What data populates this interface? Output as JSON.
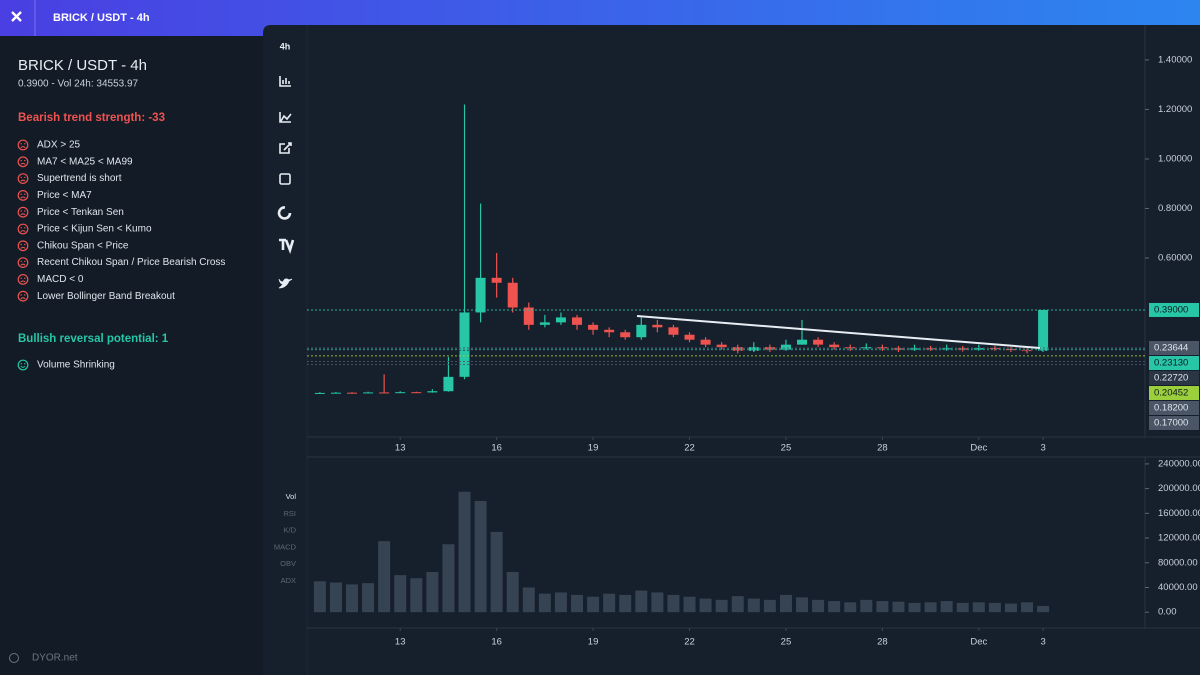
{
  "header": {
    "title": "BRICK / USDT - 4h"
  },
  "sidebar": {
    "title": "BRICK / USDT - 4h",
    "subtitle": "0.3900 - Vol 24h: 34553.97",
    "bearish": {
      "heading": "Bearish trend strength: -33",
      "items": [
        "ADX > 25",
        "MA7 < MA25 < MA99",
        "Supertrend is short",
        "Price < MA7",
        "Price < Tenkan Sen",
        "Price < Kijun Sen < Kumo",
        "Chikou Span < Price",
        "Recent Chikou Span / Price Bearish Cross",
        "MACD < 0",
        "Lower Bollinger Band Breakout"
      ]
    },
    "bullish": {
      "heading": "Bullish reversal potential: 1",
      "items": [
        "Volume Shrinking"
      ]
    },
    "footer": "DYOR.net"
  },
  "toolbar": {
    "interval": "4h"
  },
  "indicators": [
    "Vol",
    "RSI",
    "K/D",
    "MACD",
    "OBV",
    "ADX"
  ],
  "chart_data": [
    {
      "type": "candlestick",
      "x": [
        10.5,
        11,
        11.5,
        12,
        12.5,
        13,
        13.5,
        14,
        14.5,
        15,
        15.5,
        16,
        16.5,
        17,
        17.5,
        18,
        18.5,
        19,
        19.5,
        20,
        20.5,
        21,
        21.5,
        22,
        22.5,
        23,
        23.5,
        24,
        24.5,
        25,
        25.5,
        26,
        26.5,
        27,
        27.5,
        28,
        28.5,
        29,
        29.5,
        30,
        30.5,
        31,
        31.5,
        32,
        32.5,
        33
      ],
      "open": [
        0.054,
        0.055,
        0.056,
        0.055,
        0.057,
        0.056,
        0.058,
        0.057,
        0.062,
        0.12,
        0.38,
        0.52,
        0.5,
        0.4,
        0.33,
        0.34,
        0.36,
        0.33,
        0.31,
        0.3,
        0.28,
        0.33,
        0.32,
        0.29,
        0.27,
        0.25,
        0.24,
        0.225,
        0.24,
        0.23,
        0.25,
        0.27,
        0.25,
        0.24,
        0.235,
        0.24,
        0.235,
        0.23,
        0.235,
        0.232,
        0.235,
        0.23,
        0.236,
        0.232,
        0.228,
        0.225
      ],
      "high": [
        0.058,
        0.059,
        0.058,
        0.06,
        0.13,
        0.062,
        0.06,
        0.07,
        0.2,
        1.22,
        0.82,
        0.62,
        0.52,
        0.42,
        0.37,
        0.38,
        0.37,
        0.34,
        0.32,
        0.31,
        0.36,
        0.35,
        0.33,
        0.3,
        0.28,
        0.26,
        0.25,
        0.26,
        0.25,
        0.27,
        0.35,
        0.28,
        0.26,
        0.25,
        0.255,
        0.25,
        0.245,
        0.25,
        0.245,
        0.25,
        0.245,
        0.25,
        0.245,
        0.24,
        0.235,
        0.39
      ],
      "low": [
        0.052,
        0.053,
        0.053,
        0.054,
        0.054,
        0.055,
        0.055,
        0.056,
        0.06,
        0.11,
        0.34,
        0.44,
        0.38,
        0.31,
        0.32,
        0.33,
        0.31,
        0.29,
        0.28,
        0.27,
        0.27,
        0.3,
        0.28,
        0.26,
        0.24,
        0.23,
        0.215,
        0.22,
        0.22,
        0.225,
        0.25,
        0.24,
        0.23,
        0.225,
        0.23,
        0.225,
        0.22,
        0.225,
        0.225,
        0.225,
        0.222,
        0.225,
        0.225,
        0.22,
        0.215,
        0.22
      ],
      "close": [
        0.055,
        0.056,
        0.055,
        0.057,
        0.056,
        0.058,
        0.057,
        0.062,
        0.12,
        0.38,
        0.52,
        0.5,
        0.4,
        0.33,
        0.34,
        0.36,
        0.33,
        0.31,
        0.3,
        0.28,
        0.33,
        0.32,
        0.29,
        0.27,
        0.25,
        0.24,
        0.225,
        0.24,
        0.23,
        0.25,
        0.27,
        0.25,
        0.24,
        0.235,
        0.24,
        0.235,
        0.23,
        0.235,
        0.232,
        0.235,
        0.23,
        0.236,
        0.232,
        0.228,
        0.225,
        0.39
      ],
      "up_color": "#26c6a6",
      "down_color": "#ef5350",
      "xlim": [
        10.1,
        36.17
      ],
      "xticks": [
        13,
        16,
        19,
        22,
        25,
        28,
        {
          "value": 31,
          "label": "Dec"
        },
        {
          "value": 33,
          "label": "3"
        }
      ],
      "ylim": [
        -0.123,
        1.541
      ],
      "yticks": [
        {
          "value": 1.4,
          "label": "1.40000"
        },
        {
          "value": 1.2,
          "label": "1.20000"
        },
        {
          "value": 1,
          "label": "1.00000"
        },
        {
          "value": 0.8,
          "label": "0.80000"
        },
        {
          "value": 0.6,
          "label": "0.60000"
        }
      ],
      "price_markers": [
        {
          "value": 0.39,
          "label": "0.39000",
          "color": "#26c6a6"
        },
        {
          "value": 0.23644,
          "label": "0.23644",
          "color": "#4a5566"
        },
        {
          "value": 0.2313,
          "label": "0.23130",
          "color": "#26c6a6"
        },
        {
          "value": 0.2272,
          "label": "0.22720",
          "color": "#2b3644"
        },
        {
          "value": 0.20452,
          "label": "0.20452",
          "color": "#9bcf3b"
        },
        {
          "value": 0.182,
          "label": "0.18200",
          "color": "#4a5566"
        },
        {
          "value": 0.17,
          "label": "0.17000",
          "color": "#4a5566"
        }
      ]
    },
    {
      "type": "bar",
      "x": [
        10.5,
        11,
        11.5,
        12,
        12.5,
        13,
        13.5,
        14,
        14.5,
        15,
        15.5,
        16,
        16.5,
        17,
        17.5,
        18,
        18.5,
        19,
        19.5,
        20,
        20.5,
        21,
        21.5,
        22,
        22.5,
        23,
        23.5,
        24,
        24.5,
        25,
        25.5,
        26,
        26.5,
        27,
        27.5,
        28,
        28.5,
        29,
        29.5,
        30,
        30.5,
        31,
        31.5,
        32,
        32.5,
        33
      ],
      "values": [
        50000,
        48000,
        45000,
        47000,
        115000,
        60000,
        55000,
        65000,
        110000,
        195000,
        180000,
        130000,
        65000,
        40000,
        30000,
        32000,
        28000,
        25000,
        30000,
        28000,
        35000,
        32000,
        28000,
        25000,
        22000,
        20000,
        26000,
        22000,
        20000,
        28000,
        24000,
        20000,
        18000,
        16000,
        20000,
        18000,
        17000,
        15000,
        16000,
        18000,
        15000,
        16000,
        15000,
        14000,
        16000,
        10000
      ],
      "color": "#364352",
      "xlim": [
        10.1,
        36.17
      ],
      "xticks": [
        13,
        16,
        19,
        22,
        25,
        28,
        {
          "value": 31,
          "label": "Dec"
        },
        {
          "value": 33,
          "label": "3"
        }
      ],
      "ylim": [
        -25600,
        251200
      ],
      "yticks": [
        {
          "value": 0,
          "label": "0.00"
        },
        {
          "value": 40000,
          "label": "40000.00"
        },
        {
          "value": 80000,
          "label": "80000.00"
        },
        {
          "value": 120000,
          "label": "120000.00"
        },
        {
          "value": 160000,
          "label": "160000.00"
        },
        {
          "value": 200000,
          "label": "200000.00"
        },
        {
          "value": 240000,
          "label": "240000.00"
        }
      ]
    }
  ]
}
